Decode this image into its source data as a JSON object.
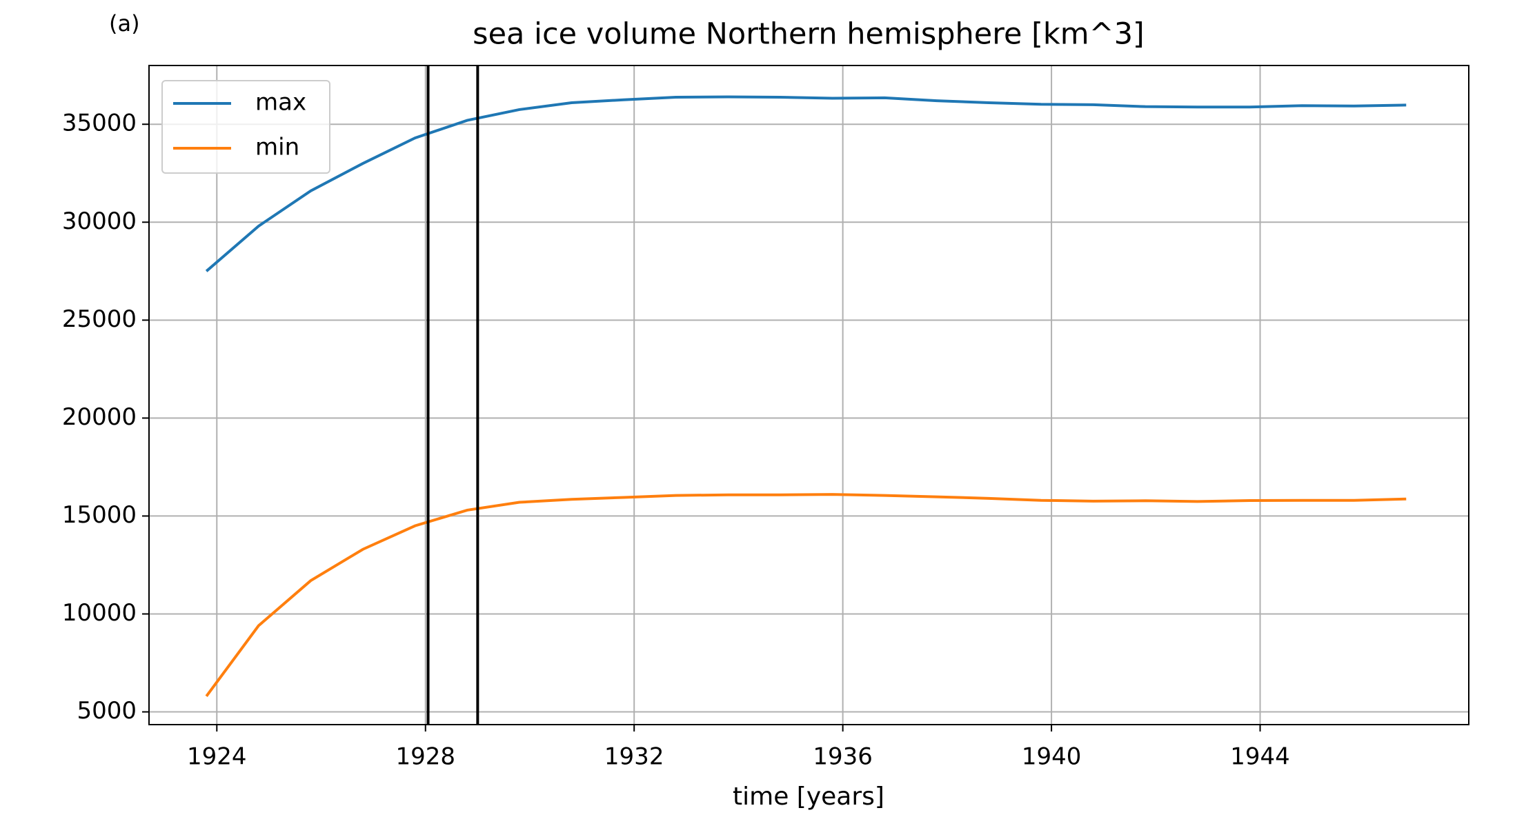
{
  "chart_data": {
    "type": "line",
    "panel_label": "(a)",
    "title": "sea ice volume Northern hemisphere [km^3]",
    "xlabel": "time [years]",
    "x": [
      1923.8,
      1924.8,
      1925.8,
      1926.8,
      1927.8,
      1928.8,
      1929.8,
      1930.8,
      1931.8,
      1932.8,
      1933.8,
      1934.8,
      1935.8,
      1936.8,
      1937.8,
      1938.8,
      1939.8,
      1940.8,
      1941.8,
      1942.8,
      1943.8,
      1944.8,
      1945.8,
      1946.8
    ],
    "series": [
      {
        "name": "max",
        "color": "#1f77b4",
        "values": [
          27500,
          29800,
          31600,
          33000,
          34300,
          35200,
          35750,
          36100,
          36250,
          36380,
          36400,
          36380,
          36330,
          36350,
          36200,
          36100,
          36020,
          36000,
          35900,
          35880,
          35880,
          35950,
          35930,
          35980
        ]
      },
      {
        "name": "min",
        "color": "#ff7f0e",
        "values": [
          5800,
          9400,
          11700,
          13300,
          14500,
          15300,
          15700,
          15850,
          15950,
          16050,
          16080,
          16080,
          16100,
          16050,
          15980,
          15900,
          15800,
          15760,
          15780,
          15740,
          15790,
          15800,
          15800,
          15870
        ]
      }
    ],
    "vlines": [
      1928.05,
      1929.0
    ],
    "vline_color": "#000000",
    "xlim": [
      1922.7,
      1948.0
    ],
    "xticks": [
      1924,
      1928,
      1932,
      1936,
      1940,
      1944
    ],
    "ylim": [
      4350,
      38000
    ],
    "yticks": [
      5000,
      10000,
      15000,
      20000,
      25000,
      30000,
      35000
    ],
    "grid": true,
    "legend": "upper-left"
  }
}
